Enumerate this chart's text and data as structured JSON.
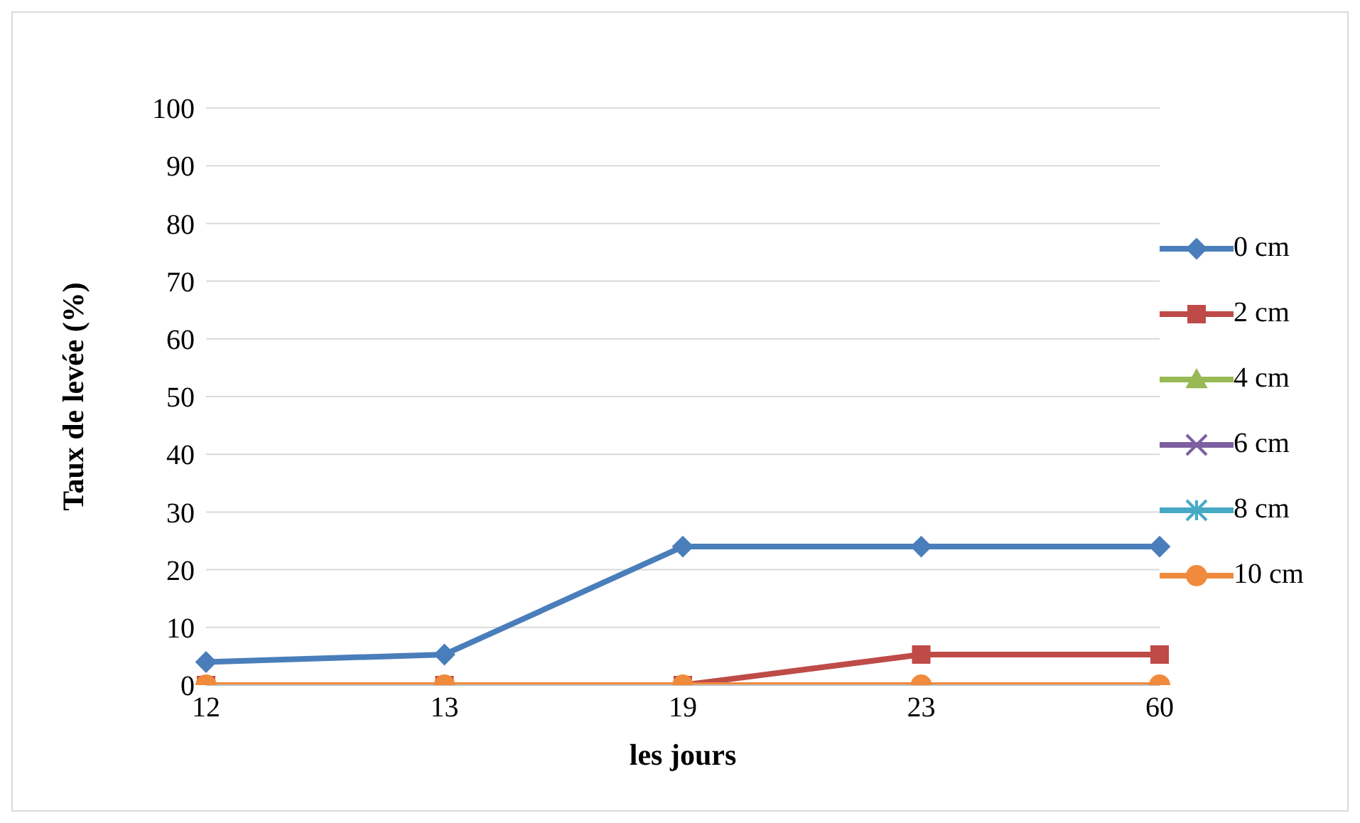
{
  "chart_data": {
    "type": "line",
    "xlabel": "les jours",
    "ylabel": "Taux de levée (%)",
    "categories": [
      "12",
      "13",
      "19",
      "23",
      "60"
    ],
    "series": [
      {
        "name": "0 cm",
        "color": "#4a7ebb",
        "marker": "diamond",
        "values": [
          4,
          5.3,
          24,
          24,
          24
        ]
      },
      {
        "name": "2 cm",
        "color": "#be4b48",
        "marker": "square",
        "values": [
          0,
          0,
          0,
          5.3,
          5.3
        ]
      },
      {
        "name": "4 cm",
        "color": "#98b954",
        "marker": "triangle",
        "values": [
          null,
          null,
          null,
          null,
          null
        ]
      },
      {
        "name": "6 cm",
        "color": "#7d60a0",
        "marker": "cross",
        "values": [
          null,
          null,
          null,
          null,
          null
        ]
      },
      {
        "name": "8 cm",
        "color": "#46aac5",
        "marker": "star",
        "values": [
          null,
          null,
          null,
          null,
          null
        ]
      },
      {
        "name": "10 cm",
        "color": "#f08a3c",
        "marker": "circle",
        "values": [
          0,
          0,
          0,
          0,
          0
        ]
      }
    ],
    "ylim": [
      0,
      100
    ],
    "yticks": [
      0,
      10,
      20,
      30,
      40,
      50,
      60,
      70,
      80,
      90,
      100
    ],
    "grid": "y",
    "legend": "right",
    "line_style": "solid"
  }
}
